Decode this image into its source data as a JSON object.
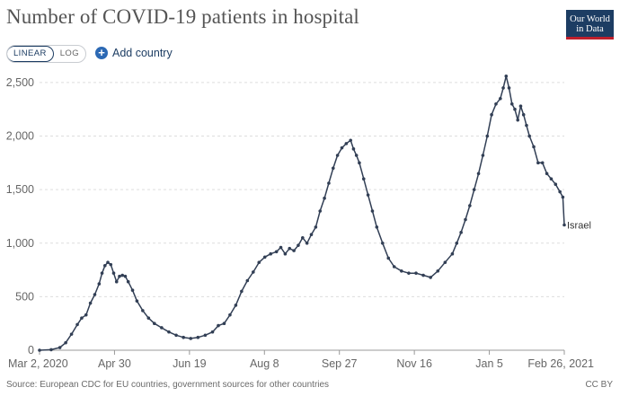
{
  "header": {
    "title": "Number of COVID-19 patients in hospital",
    "logo_line1": "Our World",
    "logo_line2": "in Data",
    "scale_options": [
      "LINEAR",
      "LOG"
    ],
    "active_scale": "LINEAR",
    "add_country_label": "Add country"
  },
  "footer": {
    "source": "Source: European CDC for EU countries, government sources for other countries",
    "license": "CC BY"
  },
  "colors": {
    "series": "#323f55",
    "grid": "#dddddd",
    "logo_bg": "#1d3d63",
    "logo_accent": "#bf1f2c",
    "link": "#1d3d63"
  },
  "chart_data": {
    "type": "line",
    "title": "Number of COVID-19 patients in hospital",
    "xlabel": "",
    "ylabel": "",
    "x_ticks": [
      "Mar 2, 2020",
      "Apr 30",
      "Jun 19",
      "Aug 8",
      "Sep 27",
      "Nov 16",
      "Jan 5",
      "Feb 26, 2021"
    ],
    "y_ticks": [
      0,
      500,
      1000,
      1500,
      2000,
      2500
    ],
    "y_tick_labels": [
      "0",
      "500",
      "1,000",
      "1,500",
      "2,000",
      "2,500"
    ],
    "xlim": [
      "2020-03-02",
      "2021-02-26"
    ],
    "ylim": [
      0,
      2600
    ],
    "grid": "horizontal dashed",
    "series": [
      {
        "name": "Israel",
        "points": [
          [
            "2020-03-02",
            0
          ],
          [
            "2020-03-10",
            5
          ],
          [
            "2020-03-16",
            25
          ],
          [
            "2020-03-20",
            70
          ],
          [
            "2020-03-24",
            150
          ],
          [
            "2020-03-28",
            240
          ],
          [
            "2020-03-31",
            300
          ],
          [
            "2020-04-03",
            330
          ],
          [
            "2020-04-06",
            440
          ],
          [
            "2020-04-09",
            520
          ],
          [
            "2020-04-12",
            620
          ],
          [
            "2020-04-14",
            720
          ],
          [
            "2020-04-16",
            790
          ],
          [
            "2020-04-18",
            820
          ],
          [
            "2020-04-20",
            800
          ],
          [
            "2020-04-22",
            720
          ],
          [
            "2020-04-24",
            640
          ],
          [
            "2020-04-26",
            690
          ],
          [
            "2020-04-28",
            700
          ],
          [
            "2020-04-30",
            690
          ],
          [
            "2020-05-02",
            640
          ],
          [
            "2020-05-05",
            560
          ],
          [
            "2020-05-08",
            460
          ],
          [
            "2020-05-12",
            370
          ],
          [
            "2020-05-16",
            300
          ],
          [
            "2020-05-20",
            250
          ],
          [
            "2020-05-25",
            210
          ],
          [
            "2020-05-30",
            170
          ],
          [
            "2020-06-04",
            140
          ],
          [
            "2020-06-09",
            120
          ],
          [
            "2020-06-14",
            110
          ],
          [
            "2020-06-19",
            120
          ],
          [
            "2020-06-24",
            140
          ],
          [
            "2020-06-29",
            170
          ],
          [
            "2020-07-03",
            230
          ],
          [
            "2020-07-07",
            250
          ],
          [
            "2020-07-11",
            330
          ],
          [
            "2020-07-15",
            420
          ],
          [
            "2020-07-19",
            550
          ],
          [
            "2020-07-23",
            650
          ],
          [
            "2020-07-27",
            730
          ],
          [
            "2020-07-31",
            820
          ],
          [
            "2020-08-04",
            870
          ],
          [
            "2020-08-08",
            900
          ],
          [
            "2020-08-12",
            920
          ],
          [
            "2020-08-15",
            960
          ],
          [
            "2020-08-18",
            900
          ],
          [
            "2020-08-21",
            950
          ],
          [
            "2020-08-24",
            930
          ],
          [
            "2020-08-27",
            980
          ],
          [
            "2020-08-30",
            1050
          ],
          [
            "2020-09-02",
            1000
          ],
          [
            "2020-09-05",
            1080
          ],
          [
            "2020-09-08",
            1150
          ],
          [
            "2020-09-11",
            1300
          ],
          [
            "2020-09-14",
            1420
          ],
          [
            "2020-09-17",
            1560
          ],
          [
            "2020-09-20",
            1700
          ],
          [
            "2020-09-23",
            1820
          ],
          [
            "2020-09-26",
            1890
          ],
          [
            "2020-09-29",
            1930
          ],
          [
            "2020-10-02",
            1960
          ],
          [
            "2020-10-04",
            1880
          ],
          [
            "2020-10-06",
            1820
          ],
          [
            "2020-10-08",
            1750
          ],
          [
            "2020-10-11",
            1600
          ],
          [
            "2020-10-14",
            1450
          ],
          [
            "2020-10-17",
            1300
          ],
          [
            "2020-10-20",
            1150
          ],
          [
            "2020-10-24",
            1000
          ],
          [
            "2020-10-28",
            860
          ],
          [
            "2020-11-01",
            780
          ],
          [
            "2020-11-06",
            740
          ],
          [
            "2020-11-11",
            720
          ],
          [
            "2020-11-16",
            720
          ],
          [
            "2020-11-21",
            700
          ],
          [
            "2020-11-26",
            680
          ],
          [
            "2020-12-01",
            740
          ],
          [
            "2020-12-06",
            820
          ],
          [
            "2020-12-11",
            900
          ],
          [
            "2020-12-14",
            1000
          ],
          [
            "2020-12-17",
            1100
          ],
          [
            "2020-12-20",
            1220
          ],
          [
            "2020-12-23",
            1350
          ],
          [
            "2020-12-26",
            1500
          ],
          [
            "2020-12-29",
            1650
          ],
          [
            "2021-01-01",
            1820
          ],
          [
            "2021-01-04",
            2000
          ],
          [
            "2021-01-07",
            2200
          ],
          [
            "2021-01-10",
            2300
          ],
          [
            "2021-01-13",
            2350
          ],
          [
            "2021-01-15",
            2450
          ],
          [
            "2021-01-17",
            2560
          ],
          [
            "2021-01-19",
            2450
          ],
          [
            "2021-01-21",
            2300
          ],
          [
            "2021-01-23",
            2250
          ],
          [
            "2021-01-25",
            2150
          ],
          [
            "2021-01-27",
            2280
          ],
          [
            "2021-01-29",
            2200
          ],
          [
            "2021-01-31",
            2100
          ],
          [
            "2021-02-02",
            2000
          ],
          [
            "2021-02-05",
            1900
          ],
          [
            "2021-02-08",
            1750
          ],
          [
            "2021-02-11",
            1750
          ],
          [
            "2021-02-14",
            1650
          ],
          [
            "2021-02-17",
            1600
          ],
          [
            "2021-02-20",
            1550
          ],
          [
            "2021-02-23",
            1480
          ],
          [
            "2021-02-25",
            1430
          ],
          [
            "2021-02-26",
            1170
          ]
        ]
      }
    ]
  }
}
